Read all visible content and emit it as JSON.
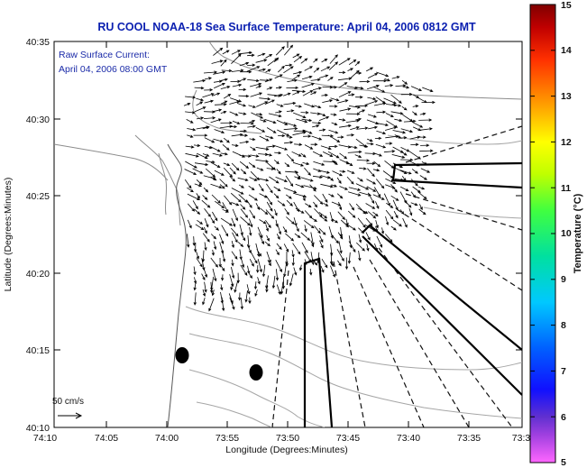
{
  "title": "RU COOL  NOAA-18  Sea Surface Temperature:  April 04, 2006 0812 GMT",
  "annotation": {
    "line1": "Raw Surface Current:",
    "line2": "April 04, 2006 08:00 GMT"
  },
  "axes": {
    "xlabel": "Longitude (Degrees:Minutes)",
    "ylabel": "Latitude (Degrees:Minutes)",
    "x_ticks": [
      "74:10",
      "74:05",
      "74:00",
      "73:55",
      "73:50",
      "73:45",
      "73:40",
      "73:35",
      "73:3"
    ],
    "y_ticks": [
      "40:35",
      "40:30",
      "40:25",
      "40:20",
      "40:15",
      "40:10"
    ]
  },
  "scale_arrow": {
    "label": "50 cm/s"
  },
  "colorbar": {
    "label": "Temperature (°C)",
    "ticks": [
      "15",
      "14",
      "13",
      "12",
      "11",
      "10",
      "9",
      "8",
      "7",
      "6",
      "5"
    ],
    "colors": [
      "#ff66ff",
      "#8a2be2",
      "#1010ff",
      "#00c8ff",
      "#00e0a0",
      "#40ff40",
      "#c0ff00",
      "#ffff00",
      "#ffa000",
      "#ff3000",
      "#b00000",
      "#800000"
    ]
  }
}
